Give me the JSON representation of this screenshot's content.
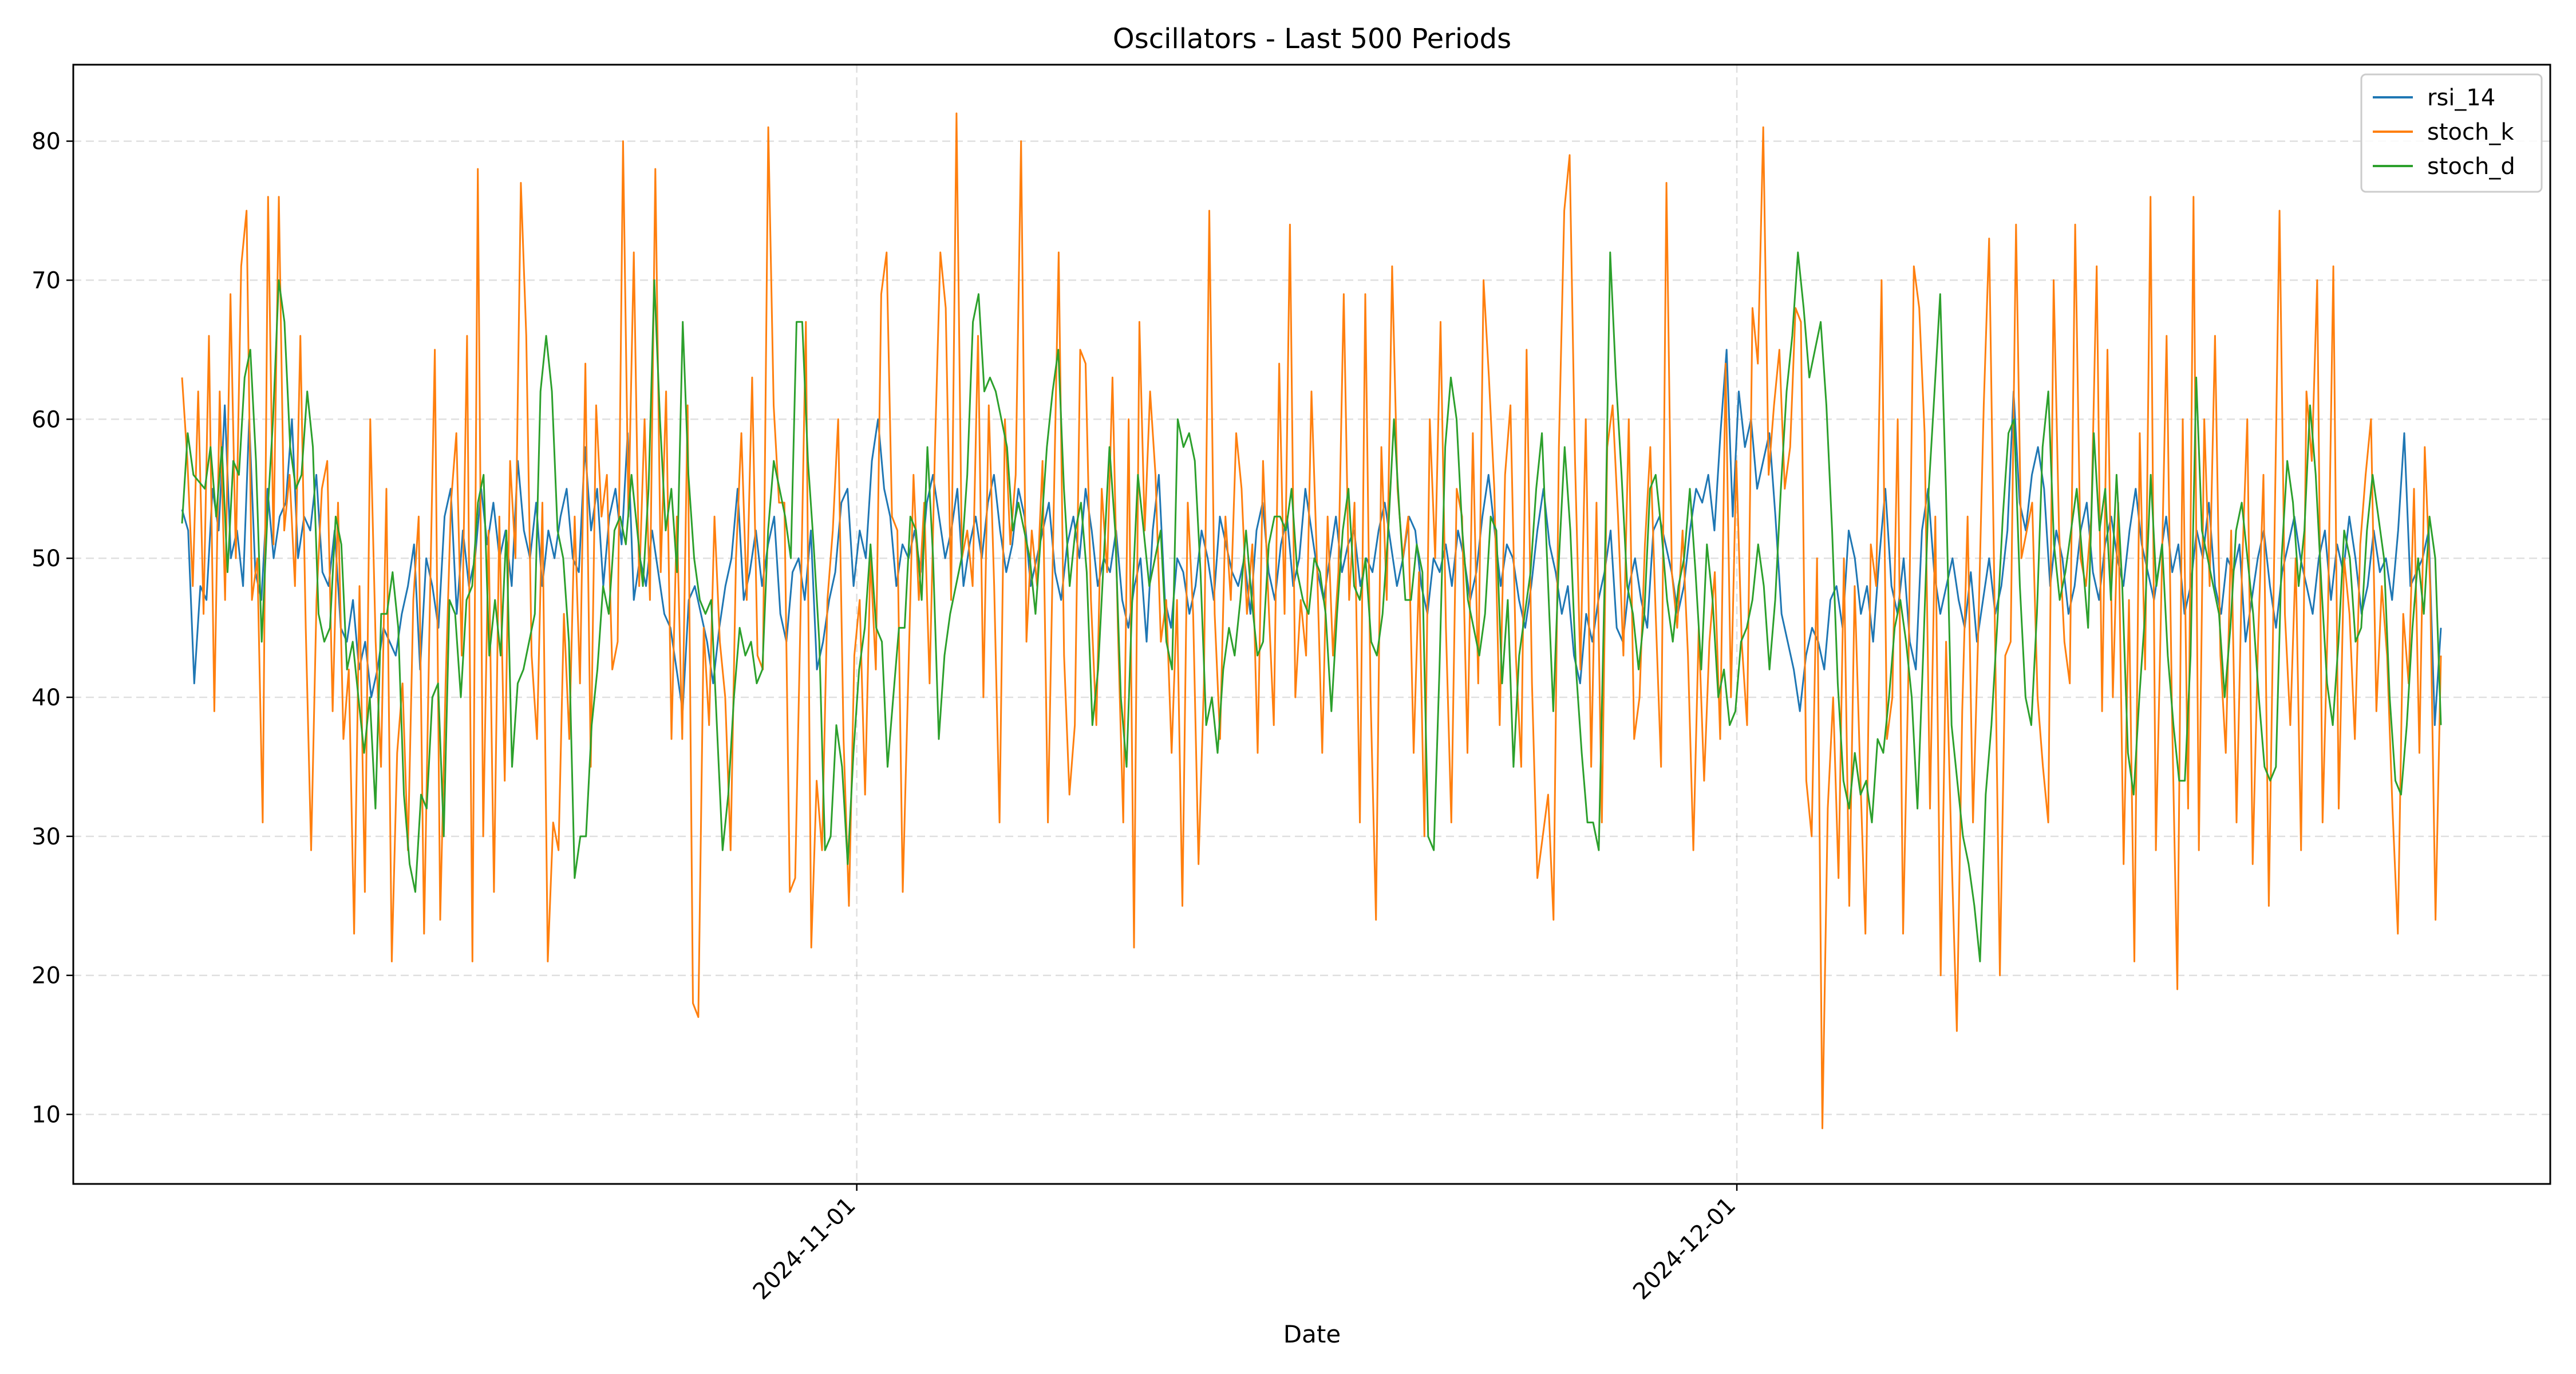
{
  "chart_data": {
    "type": "line",
    "title": "Oscillators - Last 500 Periods",
    "xlabel": "Date",
    "ylabel": "",
    "x_start": "2024-10-09",
    "x_end": "2024-12-25",
    "ylim": [
      5,
      85.5
    ],
    "yticks": [
      10,
      20,
      30,
      40,
      50,
      60,
      70,
      80
    ],
    "xticks": [
      {
        "date": "2024-11-01",
        "label": "2024-11-01"
      },
      {
        "date": "2024-12-01",
        "label": "2024-12-01"
      }
    ],
    "grid": true,
    "legend_position": "upper-right",
    "series": [
      {
        "name": "rsi_14",
        "color": "#1f77b4",
        "values": [
          53.5,
          52.0,
          41.0,
          48.0,
          47.0,
          55.0,
          52.0,
          61.0,
          50.0,
          52.0,
          48.0,
          60.0,
          49.0,
          47.0,
          55.0,
          50.0,
          53.0,
          54.0,
          60.0,
          50.0,
          53.0,
          52.0,
          56.0,
          49.0,
          48.0,
          52.0,
          45.0,
          44.0,
          47.0,
          42.0,
          44.0,
          40.0,
          42.0,
          45.0,
          44.0,
          43.0,
          46.0,
          48.0,
          51.0,
          42.0,
          50.0,
          48.0,
          45.0,
          53.0,
          55.0,
          46.0,
          52.0,
          48.0,
          50.0,
          55.0,
          51.0,
          54.0,
          50.0,
          52.0,
          48.0,
          57.0,
          52.0,
          50.0,
          54.0,
          48.0,
          52.0,
          50.0,
          53.0,
          55.0,
          50.0,
          49.0,
          58.0,
          52.0,
          55.0,
          48.0,
          53.0,
          55.0,
          51.0,
          59.0,
          47.0,
          50.0,
          48.0,
          52.0,
          49.0,
          46.0,
          45.0,
          42.0,
          39.0,
          47.0,
          48.0,
          46.0,
          44.0,
          41.0,
          45.0,
          48.0,
          50.0,
          55.0,
          47.0,
          49.0,
          52.0,
          48.0,
          51.0,
          53.0,
          46.0,
          44.0,
          49.0,
          50.0,
          47.0,
          52.0,
          42.0,
          44.0,
          47.0,
          49.0,
          54.0,
          55.0,
          48.0,
          52.0,
          50.0,
          57.0,
          60.0,
          55.0,
          53.0,
          48.0,
          51.0,
          50.0,
          52.0,
          49.0,
          54.0,
          56.0,
          53.0,
          50.0,
          52.0,
          55.0,
          48.0,
          51.0,
          53.0,
          50.0,
          54.0,
          56.0,
          52.0,
          49.0,
          51.0,
          55.0,
          53.0,
          48.0,
          50.0,
          52.0,
          54.0,
          49.0,
          47.0,
          51.0,
          53.0,
          50.0,
          55.0,
          52.0,
          48.0,
          50.0,
          49.0,
          52.0,
          47.0,
          45.0,
          48.0,
          50.0,
          44.0,
          52.0,
          56.0,
          47.0,
          45.0,
          50.0,
          49.0,
          46.0,
          48.0,
          52.0,
          50.0,
          47.0,
          53.0,
          51.0,
          49.0,
          48.0,
          50.0,
          46.0,
          52.0,
          54.0,
          49.0,
          47.0,
          51.0,
          53.0,
          48.0,
          50.0,
          55.0,
          52.0,
          49.0,
          47.0,
          50.0,
          53.0,
          49.0,
          51.0,
          52.0,
          48.0,
          50.0,
          49.0,
          52.0,
          54.0,
          51.0,
          48.0,
          50.0,
          53.0,
          52.0,
          48.0,
          46.0,
          50.0,
          49.0,
          51.0,
          48.0,
          52.0,
          50.0,
          47.0,
          49.0,
          53.0,
          56.0,
          52.0,
          48.0,
          51.0,
          50.0,
          47.0,
          45.0,
          48.0,
          52.0,
          55.0,
          51.0,
          49.0,
          46.0,
          48.0,
          43.0,
          41.0,
          46.0,
          44.0,
          47.0,
          49.0,
          52.0,
          45.0,
          44.0,
          48.0,
          50.0,
          47.0,
          45.0,
          52.0,
          53.0,
          51.0,
          49.0,
          46.0,
          48.0,
          52.0,
          55.0,
          54.0,
          56.0,
          52.0,
          59.0,
          65.0,
          53.0,
          62.0,
          58.0,
          60.0,
          55.0,
          57.0,
          59.0,
          53.0,
          46.0,
          44.0,
          42.0,
          39.0,
          43.0,
          45.0,
          44.0,
          42.0,
          47.0,
          48.0,
          45.0,
          52.0,
          50.0,
          46.0,
          48.0,
          44.0,
          50.0,
          55.0,
          48.0,
          46.0,
          50.0,
          44.0,
          42.0,
          52.0,
          55.0,
          49.0,
          46.0,
          48.0,
          50.0,
          47.0,
          45.0,
          49.0,
          44.0,
          47.0,
          50.0,
          46.0,
          48.0,
          52.0,
          62.0,
          54.0,
          52.0,
          56.0,
          58.0,
          55.0,
          48.0,
          52.0,
          50.0,
          46.0,
          48.0,
          52.0,
          54.0,
          49.0,
          47.0,
          51.0,
          53.0,
          50.0,
          48.0,
          52.0,
          55.0,
          51.0,
          49.0,
          47.0,
          50.0,
          53.0,
          49.0,
          51.0,
          46.0,
          48.0,
          52.0,
          50.0,
          54.0,
          48.0,
          46.0,
          50.0,
          49.0,
          51.0,
          44.0,
          47.0,
          50.0,
          52.0,
          48.0,
          45.0,
          49.0,
          51.0,
          53.0,
          50.0,
          48.0,
          46.0,
          50.0,
          52.0,
          47.0,
          51.0,
          49.0,
          53.0,
          50.0,
          46.0,
          48.0,
          52.0,
          49.0,
          50.0,
          47.0,
          52.0,
          59.0,
          48.0,
          49.0,
          50.0,
          52.0,
          38.0,
          45.0
        ]
      },
      {
        "name": "stoch_k",
        "color": "#ff7f0e",
        "values": [
          63.0,
          57.0,
          48.0,
          62.0,
          46.0,
          66.0,
          39.0,
          62.0,
          47.0,
          69.0,
          50.0,
          71.0,
          75.0,
          47.0,
          50.0,
          31.0,
          76.0,
          51.0,
          76.0,
          52.0,
          56.0,
          48.0,
          66.0,
          45.0,
          29.0,
          47.0,
          55.0,
          57.0,
          39.0,
          54.0,
          37.0,
          42.0,
          23.0,
          48.0,
          26.0,
          60.0,
          44.0,
          35.0,
          55.0,
          21.0,
          36.0,
          41.0,
          29.0,
          47.0,
          53.0,
          23.0,
          45.0,
          65.0,
          24.0,
          41.0,
          54.0,
          59.0,
          43.0,
          66.0,
          21.0,
          78.0,
          30.0,
          52.0,
          26.0,
          53.0,
          34.0,
          57.0,
          50.0,
          77.0,
          66.0,
          43.0,
          37.0,
          54.0,
          21.0,
          31.0,
          29.0,
          46.0,
          37.0,
          53.0,
          41.0,
          64.0,
          35.0,
          61.0,
          53.0,
          56.0,
          42.0,
          44.0,
          80.0,
          53.0,
          72.0,
          48.0,
          60.0,
          47.0,
          78.0,
          49.0,
          62.0,
          37.0,
          53.0,
          37.0,
          61.0,
          18.0,
          17.0,
          45.0,
          38.0,
          53.0,
          44.0,
          40.0,
          29.0,
          50.0,
          59.0,
          47.0,
          63.0,
          43.0,
          42.0,
          81.0,
          61.0,
          54.0,
          54.0,
          26.0,
          27.0,
          46.0,
          67.0,
          22.0,
          34.0,
          29.0,
          47.0,
          52.0,
          60.0,
          37.0,
          25.0,
          43.0,
          47.0,
          33.0,
          50.0,
          42.0,
          69.0,
          72.0,
          53.0,
          52.0,
          26.0,
          41.0,
          56.0,
          47.0,
          54.0,
          41.0,
          58.0,
          72.0,
          68.0,
          47.0,
          82.0,
          50.0,
          52.0,
          48.0,
          66.0,
          40.0,
          61.0,
          48.0,
          31.0,
          60.0,
          51.0,
          56.0,
          80.0,
          44.0,
          52.0,
          48.0,
          57.0,
          31.0,
          52.0,
          72.0,
          43.0,
          33.0,
          38.0,
          65.0,
          64.0,
          47.0,
          38.0,
          55.0,
          49.0,
          63.0,
          45.0,
          31.0,
          60.0,
          22.0,
          67.0,
          52.0,
          62.0,
          56.0,
          44.0,
          47.0,
          36.0,
          47.0,
          25.0,
          54.0,
          46.0,
          28.0,
          41.0,
          75.0,
          46.0,
          37.0,
          53.0,
          47.0,
          59.0,
          55.0,
          46.0,
          51.0,
          36.0,
          57.0,
          47.0,
          38.0,
          64.0,
          46.0,
          74.0,
          40.0,
          47.0,
          43.0,
          62.0,
          50.0,
          36.0,
          53.0,
          43.0,
          49.0,
          69.0,
          47.0,
          54.0,
          31.0,
          69.0,
          40.0,
          24.0,
          58.0,
          47.0,
          71.0,
          55.0,
          50.0,
          53.0,
          36.0,
          49.0,
          30.0,
          60.0,
          50.0,
          67.0,
          45.0,
          31.0,
          55.0,
          53.0,
          36.0,
          59.0,
          41.0,
          70.0,
          63.0,
          55.0,
          38.0,
          56.0,
          61.0,
          43.0,
          35.0,
          65.0,
          41.0,
          27.0,
          30.0,
          33.0,
          24.0,
          58.0,
          75.0,
          79.0,
          57.0,
          42.0,
          60.0,
          35.0,
          54.0,
          31.0,
          58.0,
          61.0,
          53.0,
          43.0,
          60.0,
          37.0,
          40.0,
          51.0,
          58.0,
          46.0,
          35.0,
          77.0,
          49.0,
          45.0,
          52.0,
          43.0,
          29.0,
          45.0,
          34.0,
          44.0,
          49.0,
          37.0,
          64.0,
          40.0,
          57.0,
          44.0,
          38.0,
          68.0,
          64.0,
          81.0,
          56.0,
          61.0,
          65.0,
          55.0,
          58.0,
          68.0,
          67.0,
          34.0,
          30.0,
          50.0,
          9.0,
          32.0,
          40.0,
          27.0,
          50.0,
          25.0,
          48.0,
          35.0,
          23.0,
          51.0,
          48.0,
          70.0,
          37.0,
          40.0,
          60.0,
          23.0,
          42.0,
          71.0,
          68.0,
          59.0,
          32.0,
          53.0,
          20.0,
          44.0,
          29.0,
          16.0,
          39.0,
          53.0,
          31.0,
          45.0,
          61.0,
          73.0,
          47.0,
          20.0,
          43.0,
          44.0,
          74.0,
          50.0,
          52.0,
          54.0,
          40.0,
          35.0,
          31.0,
          70.0,
          52.0,
          44.0,
          41.0,
          74.0,
          50.0,
          48.0,
          53.0,
          71.0,
          39.0,
          65.0,
          40.0,
          54.0,
          28.0,
          47.0,
          21.0,
          59.0,
          42.0,
          76.0,
          29.0,
          47.0,
          66.0,
          39.0,
          19.0,
          60.0,
          32.0,
          76.0,
          29.0,
          60.0,
          48.0,
          66.0,
          43.0,
          36.0,
          52.0,
          31.0,
          49.0,
          60.0,
          28.0,
          44.0,
          56.0,
          25.0,
          50.0,
          75.0,
          46.0,
          38.0,
          50.0,
          29.0,
          62.0,
          57.0,
          70.0,
          31.0,
          46.0,
          71.0,
          32.0,
          50.0,
          46.0,
          37.0,
          51.0,
          56.0,
          60.0,
          39.0,
          48.0,
          43.0,
          32.0,
          23.0,
          46.0,
          41.0,
          55.0,
          36.0,
          58.0,
          48.0,
          24.0,
          43.0
        ]
      },
      {
        "name": "stoch_d",
        "color": "#2ca02c",
        "values": [
          52.5,
          59.0,
          56.0,
          55.5,
          55.0,
          58.0,
          53.0,
          58.0,
          49.0,
          57.0,
          56.0,
          63.0,
          65.0,
          57.0,
          44.0,
          53.0,
          60.0,
          70.0,
          67.0,
          58.0,
          55.0,
          56.0,
          62.0,
          58.0,
          46.0,
          44.0,
          45.0,
          53.0,
          51.0,
          42.0,
          44.0,
          40.0,
          36.0,
          40.0,
          32.0,
          46.0,
          46.0,
          49.0,
          45.0,
          33.0,
          28.0,
          26.0,
          33.0,
          32.0,
          40.0,
          41.0,
          30.0,
          47.0,
          46.0,
          40.0,
          47.0,
          48.0,
          54.0,
          56.0,
          43.0,
          47.0,
          43.0,
          52.0,
          35.0,
          41.0,
          42.0,
          44.0,
          46.0,
          62.0,
          66.0,
          62.0,
          52.0,
          50.0,
          44.0,
          27.0,
          30.0,
          30.0,
          38.0,
          42.0,
          48.0,
          46.0,
          52.0,
          53.0,
          51.0,
          56.0,
          52.0,
          48.0,
          55.0,
          70.0,
          60.0,
          52.0,
          55.0,
          49.0,
          67.0,
          56.0,
          50.0,
          47.0,
          46.0,
          47.0,
          38.0,
          29.0,
          33.0,
          40.0,
          45.0,
          43.0,
          44.0,
          41.0,
          42.0,
          52.0,
          57.0,
          55.0,
          53.0,
          50.0,
          67.0,
          67.0,
          57.0,
          51.0,
          44.0,
          29.0,
          30.0,
          38.0,
          35.0,
          28.0,
          36.0,
          42.0,
          45.0,
          51.0,
          45.0,
          44.0,
          35.0,
          40.0,
          45.0,
          45.0,
          53.0,
          52.0,
          47.0,
          58.0,
          50.0,
          37.0,
          43.0,
          46.0,
          48.0,
          50.0,
          56.0,
          67.0,
          69.0,
          62.0,
          63.0,
          62.0,
          60.0,
          58.0,
          52.0,
          54.0,
          52.0,
          50.0,
          46.0,
          52.0,
          58.0,
          62.0,
          65.0,
          55.0,
          48.0,
          52.0,
          54.0,
          49.0,
          38.0,
          42.0,
          50.0,
          58.0,
          52.0,
          40.0,
          35.0,
          47.0,
          56.0,
          52.0,
          48.0,
          50.0,
          52.0,
          44.0,
          42.0,
          60.0,
          58.0,
          59.0,
          57.0,
          49.0,
          38.0,
          40.0,
          36.0,
          42.0,
          45.0,
          43.0,
          47.0,
          52.0,
          47.0,
          43.0,
          44.0,
          51.0,
          53.0,
          53.0,
          52.0,
          55.0,
          49.0,
          47.0,
          46.0,
          50.0,
          49.0,
          46.0,
          39.0,
          46.0,
          52.0,
          55.0,
          48.0,
          47.0,
          50.0,
          44.0,
          43.0,
          46.0,
          52.0,
          60.0,
          53.0,
          47.0,
          47.0,
          51.0,
          49.0,
          30.0,
          29.0,
          42.0,
          58.0,
          63.0,
          60.0,
          52.0,
          47.0,
          45.0,
          43.0,
          46.0,
          53.0,
          52.0,
          41.0,
          47.0,
          35.0,
          43.0,
          46.0,
          49.0,
          55.0,
          59.0,
          49.0,
          39.0,
          50.0,
          58.0,
          52.0,
          42.0,
          36.0,
          31.0,
          31.0,
          29.0,
          48.0,
          72.0,
          63.0,
          56.0,
          48.0,
          46.0,
          42.0,
          46.0,
          55.0,
          56.0,
          52.0,
          47.0,
          44.0,
          48.0,
          50.0,
          55.0,
          49.0,
          42.0,
          51.0,
          47.0,
          40.0,
          42.0,
          38.0,
          39.0,
          44.0,
          45.0,
          47.0,
          51.0,
          48.0,
          42.0,
          47.0,
          55.0,
          62.0,
          66.0,
          72.0,
          68.0,
          63.0,
          65.0,
          67.0,
          61.0,
          52.0,
          41.0,
          34.0,
          32.0,
          36.0,
          33.0,
          34.0,
          31.0,
          37.0,
          36.0,
          40.0,
          45.0,
          47.0,
          44.0,
          40.0,
          32.0,
          43.0,
          55.0,
          62.0,
          69.0,
          55.0,
          38.0,
          34.0,
          30.0,
          28.0,
          25.0,
          21.0,
          33.0,
          38.0,
          45.0,
          53.0,
          59.0,
          60.0,
          48.0,
          40.0,
          38.0,
          46.0,
          58.0,
          62.0,
          51.0,
          47.0,
          49.0,
          52.0,
          55.0,
          50.0,
          45.0,
          59.0,
          52.0,
          55.0,
          47.0,
          56.0,
          48.0,
          36.0,
          33.0,
          40.0,
          46.0,
          56.0,
          48.0,
          51.0,
          43.0,
          38.0,
          34.0,
          34.0,
          43.0,
          63.0,
          52.0,
          50.0,
          48.0,
          46.0,
          40.0,
          45.0,
          52.0,
          54.0,
          50.0,
          46.0,
          40.0,
          35.0,
          34.0,
          35.0,
          50.0,
          57.0,
          54.0,
          48.0,
          52.0,
          61.0,
          56.0,
          48.0,
          41.0,
          38.0,
          44.0,
          52.0,
          50.0,
          44.0,
          45.0,
          52.0,
          56.0,
          53.0,
          50.0,
          40.0,
          34.0,
          33.0,
          38.0,
          45.0,
          50.0,
          46.0,
          53.0,
          50.0,
          38.0
        ]
      }
    ]
  }
}
